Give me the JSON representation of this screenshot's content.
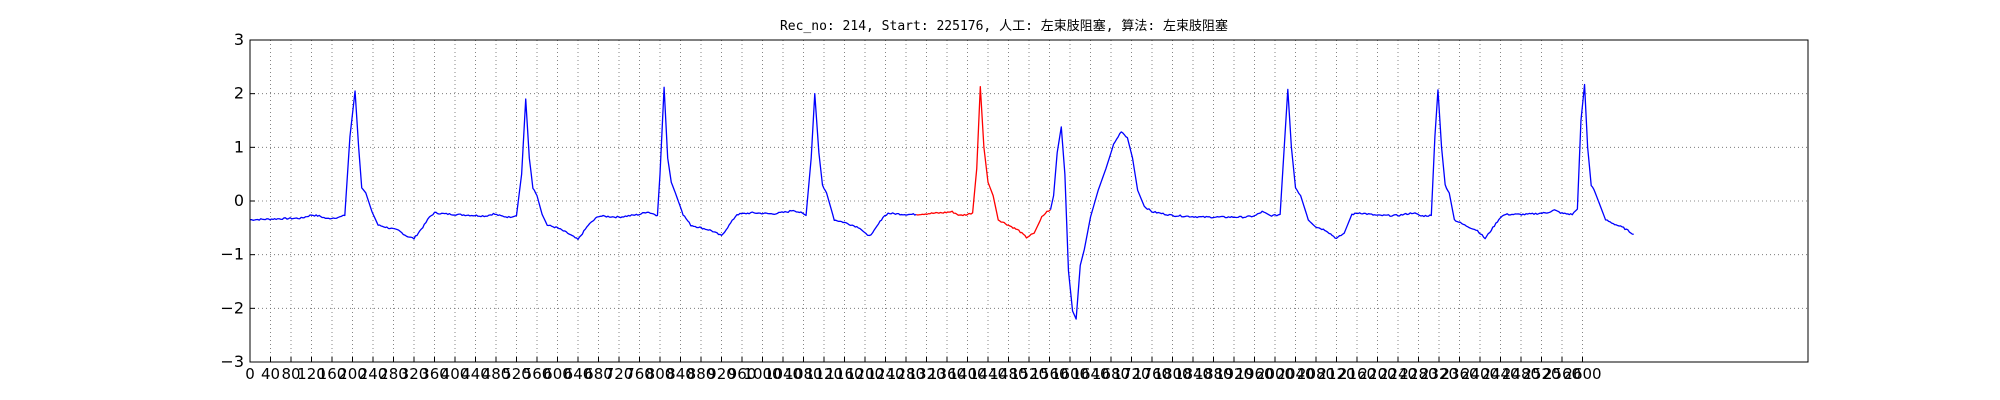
{
  "chart_data": {
    "type": "line",
    "title": "Rec_no: 214, Start: 225176, 人工: 左束肢阻塞, 算法: 左束肢阻塞",
    "xlabel": "",
    "ylabel": "",
    "xlim": [
      0,
      3040
    ],
    "ylim": [
      -3,
      3
    ],
    "grid": true,
    "xticks": [
      0,
      40,
      80,
      120,
      160,
      200,
      240,
      280,
      320,
      360,
      400,
      440,
      480,
      520,
      560,
      600,
      640,
      680,
      720,
      760,
      800,
      840,
      880,
      920,
      960,
      1000,
      1040,
      1080,
      1120,
      1160,
      1200,
      1240,
      1280,
      1320,
      1360,
      1400,
      1440,
      1480,
      1520,
      1560,
      1600,
      1640,
      1680,
      1720,
      1760,
      1800,
      1840,
      1880,
      1920,
      1960,
      2000,
      2040,
      2080,
      2120,
      2160,
      2200,
      2240,
      2280,
      2320,
      2360,
      2400,
      2440,
      2480,
      2520,
      2560,
      2600
    ],
    "yticks": [
      "3",
      "2",
      "1",
      "0",
      "−1",
      "−2",
      "−3"
    ],
    "ytick_values": [
      3,
      2,
      1,
      0,
      -1,
      -2,
      -3
    ],
    "series": [
      {
        "color": "#0000ff",
        "points": [
          [
            0,
            -0.35
          ],
          [
            60,
            -0.33
          ],
          [
            100,
            -0.32
          ],
          [
            120,
            -0.26
          ],
          [
            135,
            -0.28
          ],
          [
            150,
            -0.33
          ],
          [
            175,
            -0.3
          ],
          [
            185,
            -0.27
          ],
          [
            195,
            1.2
          ],
          [
            205,
            2.05
          ],
          [
            212,
            1.0
          ],
          [
            218,
            0.25
          ],
          [
            226,
            0.15
          ],
          [
            238,
            -0.2
          ],
          [
            250,
            -0.45
          ],
          [
            270,
            -0.5
          ],
          [
            290,
            -0.55
          ],
          [
            305,
            -0.65
          ],
          [
            320,
            -0.7
          ],
          [
            340,
            -0.45
          ],
          [
            350,
            -0.3
          ],
          [
            360,
            -0.22
          ],
          [
            380,
            -0.24
          ],
          [
            420,
            -0.26
          ],
          [
            460,
            -0.28
          ],
          [
            475,
            -0.24
          ],
          [
            490,
            -0.28
          ],
          [
            505,
            -0.3
          ],
          [
            520,
            -0.27
          ],
          [
            530,
            0.5
          ],
          [
            538,
            1.9
          ],
          [
            545,
            0.8
          ],
          [
            552,
            0.25
          ],
          [
            560,
            0.1
          ],
          [
            570,
            -0.25
          ],
          [
            580,
            -0.45
          ],
          [
            600,
            -0.5
          ],
          [
            620,
            -0.6
          ],
          [
            640,
            -0.72
          ],
          [
            660,
            -0.45
          ],
          [
            680,
            -0.28
          ],
          [
            720,
            -0.3
          ],
          [
            760,
            -0.25
          ],
          [
            775,
            -0.2
          ],
          [
            790,
            -0.25
          ],
          [
            795,
            -0.27
          ],
          [
            800,
            0.5
          ],
          [
            808,
            2.12
          ],
          [
            815,
            0.8
          ],
          [
            822,
            0.35
          ],
          [
            830,
            0.15
          ],
          [
            845,
            -0.25
          ],
          [
            860,
            -0.45
          ],
          [
            880,
            -0.5
          ],
          [
            900,
            -0.55
          ],
          [
            920,
            -0.65
          ],
          [
            935,
            -0.45
          ],
          [
            950,
            -0.25
          ],
          [
            980,
            -0.22
          ],
          [
            1020,
            -0.24
          ],
          [
            1050,
            -0.2
          ],
          [
            1060,
            -0.17
          ],
          [
            1075,
            -0.22
          ],
          [
            1085,
            -0.27
          ],
          [
            1095,
            0.8
          ],
          [
            1102,
            2.0
          ],
          [
            1110,
            0.9
          ],
          [
            1117,
            0.3
          ],
          [
            1125,
            0.15
          ],
          [
            1140,
            -0.35
          ],
          [
            1160,
            -0.4
          ],
          [
            1190,
            -0.5
          ],
          [
            1205,
            -0.65
          ],
          [
            1215,
            -0.6
          ],
          [
            1235,
            -0.3
          ],
          [
            1245,
            -0.23
          ],
          [
            1280,
            -0.25
          ],
          [
            1300,
            -0.25
          ]
        ]
      },
      {
        "color": "#ff0000",
        "points": [
          [
            1300,
            -0.25
          ],
          [
            1330,
            -0.23
          ],
          [
            1350,
            -0.22
          ],
          [
            1370,
            -0.2
          ],
          [
            1385,
            -0.27
          ],
          [
            1400,
            -0.25
          ],
          [
            1410,
            -0.22
          ],
          [
            1418,
            0.6
          ],
          [
            1425,
            2.13
          ],
          [
            1432,
            1.0
          ],
          [
            1440,
            0.35
          ],
          [
            1450,
            0.1
          ],
          [
            1460,
            -0.35
          ],
          [
            1480,
            -0.45
          ],
          [
            1500,
            -0.55
          ],
          [
            1515,
            -0.68
          ],
          [
            1530,
            -0.6
          ],
          [
            1545,
            -0.3
          ],
          [
            1555,
            -0.2
          ],
          [
            1562,
            -0.16
          ]
        ]
      },
      {
        "color": "#0000ff",
        "points": [
          [
            1562,
            -0.16
          ],
          [
            1568,
            0.1
          ],
          [
            1575,
            0.9
          ],
          [
            1583,
            1.38
          ],
          [
            1590,
            0.5
          ],
          [
            1597,
            -1.3
          ],
          [
            1605,
            -2.05
          ],
          [
            1612,
            -2.2
          ],
          [
            1620,
            -1.2
          ],
          [
            1628,
            -0.9
          ],
          [
            1640,
            -0.3
          ],
          [
            1655,
            0.2
          ],
          [
            1670,
            0.6
          ],
          [
            1685,
            1.05
          ],
          [
            1700,
            1.3
          ],
          [
            1712,
            1.18
          ],
          [
            1722,
            0.8
          ],
          [
            1732,
            0.2
          ],
          [
            1745,
            -0.1
          ],
          [
            1760,
            -0.2
          ],
          [
            1800,
            -0.27
          ],
          [
            1860,
            -0.3
          ],
          [
            1900,
            -0.3
          ],
          [
            1940,
            -0.3
          ],
          [
            1960,
            -0.28
          ],
          [
            1975,
            -0.2
          ],
          [
            1990,
            -0.27
          ],
          [
            2000,
            -0.27
          ],
          [
            2010,
            -0.25
          ],
          [
            2018,
            1.0
          ],
          [
            2025,
            2.08
          ],
          [
            2032,
            1.0
          ],
          [
            2040,
            0.25
          ],
          [
            2050,
            0.1
          ],
          [
            2065,
            -0.35
          ],
          [
            2080,
            -0.48
          ],
          [
            2100,
            -0.55
          ],
          [
            2120,
            -0.7
          ],
          [
            2135,
            -0.6
          ],
          [
            2150,
            -0.25
          ],
          [
            2165,
            -0.22
          ],
          [
            2200,
            -0.27
          ],
          [
            2240,
            -0.27
          ],
          [
            2270,
            -0.22
          ],
          [
            2285,
            -0.28
          ],
          [
            2305,
            -0.27
          ],
          [
            2312,
            1.2
          ],
          [
            2318,
            2.07
          ],
          [
            2325,
            1.0
          ],
          [
            2332,
            0.3
          ],
          [
            2340,
            0.15
          ],
          [
            2350,
            -0.35
          ],
          [
            2370,
            -0.45
          ],
          [
            2395,
            -0.55
          ],
          [
            2410,
            -0.7
          ],
          [
            2425,
            -0.5
          ],
          [
            2440,
            -0.3
          ],
          [
            2450,
            -0.25
          ],
          [
            2490,
            -0.25
          ],
          [
            2530,
            -0.22
          ],
          [
            2545,
            -0.17
          ],
          [
            2560,
            -0.23
          ],
          [
            2580,
            -0.25
          ],
          [
            2590,
            -0.15
          ],
          [
            2597,
            1.5
          ],
          [
            2604,
            2.17
          ],
          [
            2610,
            1.0
          ],
          [
            2617,
            0.3
          ],
          [
            2625,
            0.15
          ],
          [
            2635,
            -0.1
          ],
          [
            2645,
            -0.35
          ],
          [
            2660,
            -0.42
          ],
          [
            2680,
            -0.5
          ],
          [
            2700,
            -0.62
          ]
        ]
      }
    ]
  }
}
